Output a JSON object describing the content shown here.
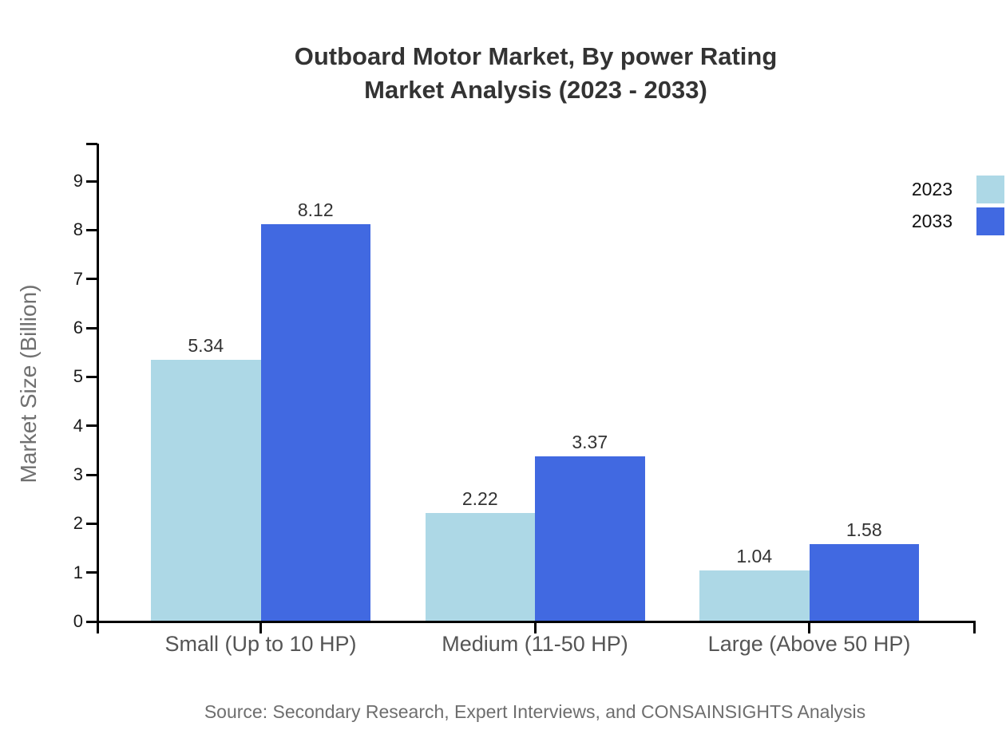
{
  "title": {
    "line1": "Outboard Motor Market, By power Rating",
    "line2": "Market Analysis (2023 - 2033)"
  },
  "source_text": "Source: Secondary Research, Expert Interviews, and CONSAINSIGHTS Analysis",
  "chart_data": {
    "type": "bar",
    "title": "Outboard Motor Market, By power Rating — Market Analysis (2023 - 2033)",
    "categories": [
      "Small (Up to 10 HP)",
      "Medium (11-50 HP)",
      "Large (Above 50 HP)"
    ],
    "series": [
      {
        "name": "2023",
        "color": "#ADD8E6",
        "values": [
          5.34,
          2.22,
          1.04
        ]
      },
      {
        "name": "2033",
        "color": "#4169E1",
        "values": [
          8.12,
          3.37,
          1.58
        ]
      }
    ],
    "xlabel": "",
    "ylabel": "Market Size (Billion)",
    "ylim": [
      0,
      9.8
    ],
    "yticks": [
      0,
      1,
      2,
      3,
      4,
      5,
      6,
      7,
      8,
      9
    ],
    "grid": false,
    "value_labels": true,
    "value_label_format": "2dp",
    "legend_position": "top-right",
    "legend_style": "label-left-of-swatch"
  }
}
